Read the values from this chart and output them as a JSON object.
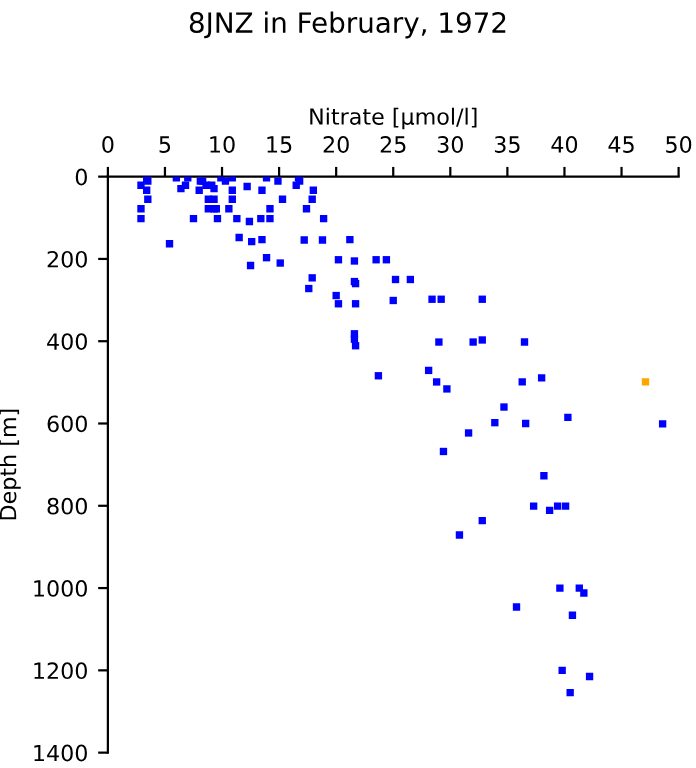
{
  "chart_data": {
    "type": "scatter",
    "title": "8JNZ in February, 1972",
    "xlabel": "Nitrate [µmol/l]",
    "ylabel": "Depth [m]",
    "xlim": [
      0,
      50
    ],
    "xticks": [
      0,
      5,
      10,
      15,
      20,
      25,
      30,
      35,
      40,
      45,
      50
    ],
    "ylim": [
      1400,
      0
    ],
    "yticks": [
      0,
      200,
      400,
      600,
      800,
      1000,
      1200,
      1400
    ],
    "grid": false,
    "legend": false,
    "marker": "square",
    "series": [
      {
        "color": "#0000ff",
        "x": [
          2.9,
          3.4,
          3.5,
          3.4,
          3.5,
          2.9,
          2.9,
          6.0,
          7.0,
          6.8,
          6.4,
          8.1,
          8.3,
          8.6,
          8.0,
          9.1,
          9.3,
          8.8,
          9.3,
          8.8,
          9.3,
          9.5,
          7.5,
          9.6,
          9.9,
          10.3,
          10.9,
          10.9,
          10.9,
          10.6,
          11.3,
          12.2,
          12.4,
          13.4,
          14.2,
          13.5,
          14.2,
          13.9,
          14.9,
          15.3,
          16.7,
          16.8,
          16.5,
          18.0,
          17.9,
          17.4,
          18.9,
          5.4,
          11.5,
          12.6,
          13.5,
          13.9,
          12.5,
          15.1,
          17.2,
          18.8,
          21.2,
          20.2,
          21.6,
          23.5,
          24.4,
          17.9,
          17.6,
          21.6,
          21.7,
          21.7,
          20.0,
          20.2,
          25.2,
          26.5,
          25.0,
          28.4,
          29.2,
          32.8,
          21.6,
          21.6,
          21.7,
          29.0,
          32.0,
          32.8,
          36.5,
          23.7,
          28.1,
          28.8,
          29.7,
          36.3,
          38.0,
          34.7,
          33.9,
          36.6,
          40.3,
          31.6,
          29.4,
          48.6,
          38.2,
          37.3,
          38.7,
          39.4,
          40.1,
          32.8,
          30.8,
          39.6,
          41.3,
          41.7,
          35.8,
          40.7,
          39.8,
          42.2,
          40.5
        ],
        "values": [
          21,
          5,
          11,
          33,
          55,
          78,
          102,
          3,
          3,
          21,
          29,
          11,
          11,
          21,
          33,
          21,
          29,
          55,
          55,
          78,
          78,
          78,
          102,
          102,
          3,
          11,
          3,
          33,
          55,
          78,
          102,
          24,
          109,
          102,
          102,
          33,
          78,
          3,
          11,
          55,
          3,
          11,
          21,
          33,
          55,
          78,
          102,
          163,
          148,
          158,
          153,
          197,
          216,
          210,
          154,
          154,
          153,
          202,
          205,
          202,
          202,
          246,
          272,
          255,
          260,
          309,
          289,
          309,
          250,
          250,
          301,
          298,
          298,
          298,
          382,
          395,
          411,
          402,
          402,
          397,
          402,
          484,
          471,
          499,
          516,
          499,
          489,
          560,
          598,
          600,
          585,
          623,
          668,
          601,
          727,
          801,
          811,
          801,
          801,
          836,
          871,
          1000,
          1000,
          1012,
          1046,
          1066,
          1200,
          1215,
          1254
        ]
      },
      {
        "color": "#ffa500",
        "x": [
          47.1
        ],
        "values": [
          499
        ]
      }
    ]
  }
}
